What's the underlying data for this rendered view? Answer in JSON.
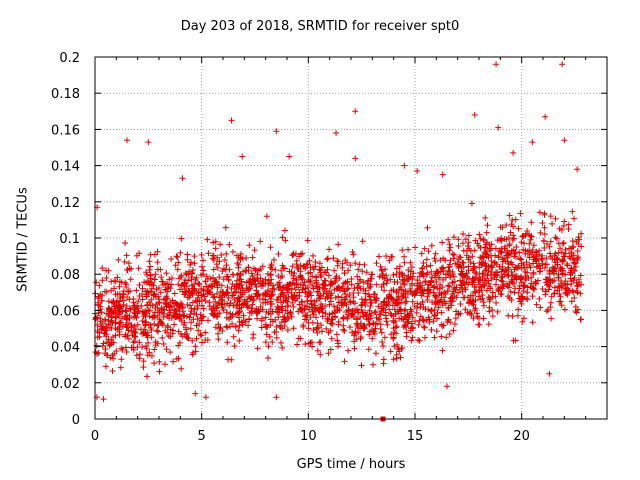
{
  "chart_data": {
    "type": "scatter",
    "title": "Day 203 of 2018, SRMTID for receiver spt0",
    "xlabel": "GPS time / hours",
    "ylabel": "SRMTID / TECUs",
    "xlim": [
      0,
      24
    ],
    "ylim": [
      0,
      0.2
    ],
    "x_ticks": [
      0,
      5,
      10,
      15,
      20
    ],
    "y_ticks": [
      0,
      0.02,
      0.04,
      0.06,
      0.08,
      0.1,
      0.12,
      0.14,
      0.16,
      0.18,
      0.2
    ],
    "grid": true,
    "legend": "none",
    "marker": "+",
    "color": "#e00000",
    "outliers": [
      {
        "x": 0.1,
        "y": 0.117
      },
      {
        "x": 1.5,
        "y": 0.154
      },
      {
        "x": 2.5,
        "y": 0.153
      },
      {
        "x": 4.1,
        "y": 0.133
      },
      {
        "x": 6.4,
        "y": 0.165
      },
      {
        "x": 6.9,
        "y": 0.145
      },
      {
        "x": 8.5,
        "y": 0.159
      },
      {
        "x": 9.1,
        "y": 0.145
      },
      {
        "x": 11.3,
        "y": 0.158
      },
      {
        "x": 12.2,
        "y": 0.17
      },
      {
        "x": 12.2,
        "y": 0.144
      },
      {
        "x": 14.5,
        "y": 0.14
      },
      {
        "x": 15.1,
        "y": 0.137
      },
      {
        "x": 16.3,
        "y": 0.135
      },
      {
        "x": 17.8,
        "y": 0.168
      },
      {
        "x": 18.8,
        "y": 0.196
      },
      {
        "x": 18.9,
        "y": 0.161
      },
      {
        "x": 19.6,
        "y": 0.147
      },
      {
        "x": 20.5,
        "y": 0.153
      },
      {
        "x": 21.1,
        "y": 0.167
      },
      {
        "x": 21.9,
        "y": 0.196
      },
      {
        "x": 22.0,
        "y": 0.154
      },
      {
        "x": 22.6,
        "y": 0.138
      },
      {
        "x": 0.4,
        "y": 0.011
      },
      {
        "x": 4.7,
        "y": 0.014
      },
      {
        "x": 5.2,
        "y": 0.012
      },
      {
        "x": 8.5,
        "y": 0.012
      },
      {
        "x": 16.5,
        "y": 0.018
      },
      {
        "x": 21.3,
        "y": 0.025
      },
      {
        "x": 13.5,
        "y": 0.0
      }
    ],
    "trend_segments": [
      {
        "x_start": 0,
        "x_end": 1,
        "y_center": 0.055
      },
      {
        "x_start": 1,
        "x_end": 3,
        "y_center": 0.06
      },
      {
        "x_start": 3,
        "x_end": 5,
        "y_center": 0.06
      },
      {
        "x_start": 5,
        "x_end": 7,
        "y_center": 0.07
      },
      {
        "x_start": 7,
        "x_end": 9,
        "y_center": 0.068
      },
      {
        "x_start": 9,
        "x_end": 11,
        "y_center": 0.068
      },
      {
        "x_start": 11,
        "x_end": 13,
        "y_center": 0.065
      },
      {
        "x_start": 13,
        "x_end": 15,
        "y_center": 0.062
      },
      {
        "x_start": 15,
        "x_end": 17,
        "y_center": 0.068
      },
      {
        "x_start": 17,
        "x_end": 19,
        "y_center": 0.078
      },
      {
        "x_start": 19,
        "x_end": 21,
        "y_center": 0.085
      },
      {
        "x_start": 21,
        "x_end": 23,
        "y_center": 0.082
      }
    ],
    "point_count": 2600,
    "point_spread": 0.018
  }
}
